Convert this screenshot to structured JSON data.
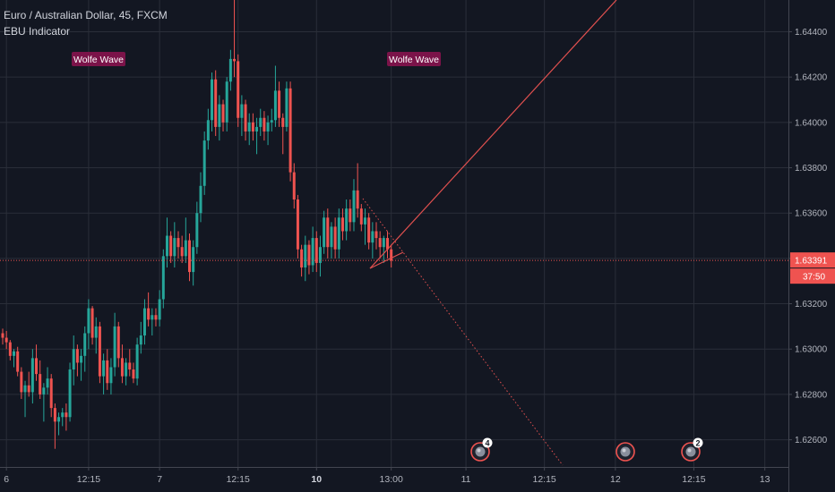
{
  "legend": {
    "symbol_line": "Euro / Australian Dollar, 45, FXCM",
    "indicator": "EBU Indicator"
  },
  "colors": {
    "background": "#131722",
    "grid": "#2a2e39",
    "up": "#26a69a",
    "down": "#ef5350",
    "wolfe_line": "#e0504f",
    "wolfe_label_bg": "#7b1349",
    "price_badge": "#ef5350"
  },
  "chart_data": {
    "type": "candlestick",
    "title": "Euro / Australian Dollar, 45, FXCM",
    "ylim": [
      1.6248,
      1.6454
    ],
    "y_ticks": [
      "1.62600",
      "1.62800",
      "1.63000",
      "1.63200",
      "1.63400",
      "1.63600",
      "1.63800",
      "1.64000",
      "1.64200",
      "1.64400"
    ],
    "x_ticks": [
      {
        "label": "6",
        "bar": 1,
        "bold": false
      },
      {
        "label": "12:15",
        "bar": 23,
        "bold": false
      },
      {
        "label": "7",
        "bar": 42,
        "bold": false
      },
      {
        "label": "12:15",
        "bar": 63,
        "bold": false
      },
      {
        "label": "10",
        "bar": 84,
        "bold": true
      },
      {
        "label": "13:00",
        "bar": 104,
        "bold": false
      },
      {
        "label": "11",
        "bar": 124,
        "bold": false
      },
      {
        "label": "12:15",
        "bar": 145,
        "bold": false
      },
      {
        "label": "12",
        "bar": 164,
        "bold": false
      },
      {
        "label": "12:15",
        "bar": 185,
        "bold": false
      },
      {
        "label": "13",
        "bar": 204,
        "bold": false
      }
    ],
    "current_price": "1.63391",
    "countdown": "37:50",
    "grid": true,
    "bar_spacing_note": "one candle per bar index",
    "candles": [
      [
        1.6307,
        1.6309,
        1.6302,
        1.6305
      ],
      [
        1.6305,
        1.6308,
        1.63,
        1.6303
      ],
      [
        1.6303,
        1.6304,
        1.6295,
        1.6297
      ],
      [
        1.6297,
        1.63,
        1.6292,
        1.6299
      ],
      [
        1.6299,
        1.6301,
        1.6288,
        1.629
      ],
      [
        1.629,
        1.6292,
        1.6278,
        1.6281
      ],
      [
        1.6281,
        1.6286,
        1.627,
        1.6284
      ],
      [
        1.6284,
        1.629,
        1.6279,
        1.6281
      ],
      [
        1.6281,
        1.63,
        1.6276,
        1.6296
      ],
      [
        1.6296,
        1.6302,
        1.6286,
        1.6289
      ],
      [
        1.6289,
        1.6295,
        1.6278,
        1.628
      ],
      [
        1.628,
        1.6285,
        1.6268,
        1.6283
      ],
      [
        1.6283,
        1.6292,
        1.628,
        1.6287
      ],
      [
        1.6287,
        1.6289,
        1.627,
        1.6274
      ],
      [
        1.6274,
        1.6276,
        1.6256,
        1.6268
      ],
      [
        1.6268,
        1.6272,
        1.6262,
        1.627
      ],
      [
        1.627,
        1.6274,
        1.6266,
        1.6272
      ],
      [
        1.6272,
        1.6276,
        1.6264,
        1.627
      ],
      [
        1.627,
        1.6294,
        1.6268,
        1.6291
      ],
      [
        1.6291,
        1.6306,
        1.6284,
        1.63
      ],
      [
        1.63,
        1.6302,
        1.6288,
        1.6294
      ],
      [
        1.6294,
        1.63,
        1.6286,
        1.6297
      ],
      [
        1.6297,
        1.631,
        1.629,
        1.6307
      ],
      [
        1.6307,
        1.6322,
        1.63,
        1.6318
      ],
      [
        1.6318,
        1.6319,
        1.6302,
        1.6305
      ],
      [
        1.6305,
        1.6314,
        1.6298,
        1.631
      ],
      [
        1.631,
        1.6312,
        1.6285,
        1.6288
      ],
      [
        1.6288,
        1.6298,
        1.628,
        1.6295
      ],
      [
        1.6295,
        1.63,
        1.6282,
        1.6285
      ],
      [
        1.6285,
        1.6296,
        1.628,
        1.6292
      ],
      [
        1.6292,
        1.6316,
        1.6288,
        1.631
      ],
      [
        1.631,
        1.6312,
        1.6292,
        1.6296
      ],
      [
        1.6296,
        1.6302,
        1.6285,
        1.6288
      ],
      [
        1.6288,
        1.6296,
        1.6284,
        1.6294
      ],
      [
        1.6294,
        1.63,
        1.6288,
        1.6291
      ],
      [
        1.6291,
        1.6294,
        1.6285,
        1.6287
      ],
      [
        1.6287,
        1.6305,
        1.6284,
        1.6302
      ],
      [
        1.6302,
        1.6312,
        1.6298,
        1.6306
      ],
      [
        1.6306,
        1.6322,
        1.6302,
        1.6318
      ],
      [
        1.6318,
        1.6325,
        1.631,
        1.6313
      ],
      [
        1.6313,
        1.6318,
        1.6306,
        1.6315
      ],
      [
        1.6315,
        1.6318,
        1.631,
        1.6313
      ],
      [
        1.6313,
        1.6326,
        1.631,
        1.6322
      ],
      [
        1.6322,
        1.6344,
        1.6318,
        1.6341
      ],
      [
        1.6341,
        1.6358,
        1.6336,
        1.635
      ],
      [
        1.635,
        1.6352,
        1.6338,
        1.6341
      ],
      [
        1.6341,
        1.6356,
        1.6336,
        1.6349
      ],
      [
        1.6349,
        1.6352,
        1.634,
        1.6345
      ],
      [
        1.6345,
        1.635,
        1.6338,
        1.6341
      ],
      [
        1.6341,
        1.6358,
        1.6338,
        1.6348
      ],
      [
        1.6348,
        1.6351,
        1.633,
        1.6334
      ],
      [
        1.6334,
        1.6348,
        1.6328,
        1.6345
      ],
      [
        1.6345,
        1.6365,
        1.6342,
        1.636
      ],
      [
        1.636,
        1.6378,
        1.6356,
        1.6372
      ],
      [
        1.6372,
        1.6396,
        1.6368,
        1.6392
      ],
      [
        1.6392,
        1.6406,
        1.6388,
        1.6401
      ],
      [
        1.6401,
        1.6422,
        1.6396,
        1.6419
      ],
      [
        1.6419,
        1.6423,
        1.6394,
        1.6398
      ],
      [
        1.6398,
        1.6412,
        1.6392,
        1.6408
      ],
      [
        1.6408,
        1.641,
        1.6396,
        1.64
      ],
      [
        1.64,
        1.642,
        1.6396,
        1.6418
      ],
      [
        1.6418,
        1.6432,
        1.6414,
        1.6428
      ],
      [
        1.6428,
        1.6454,
        1.642,
        1.6427
      ],
      [
        1.6427,
        1.643,
        1.6398,
        1.6402
      ],
      [
        1.6402,
        1.6412,
        1.6394,
        1.6408
      ],
      [
        1.6408,
        1.641,
        1.6392,
        1.6396
      ],
      [
        1.6396,
        1.6404,
        1.639,
        1.64
      ],
      [
        1.64,
        1.6404,
        1.6392,
        1.6396
      ],
      [
        1.6396,
        1.6402,
        1.6386,
        1.6398
      ],
      [
        1.6398,
        1.6406,
        1.6394,
        1.6402
      ],
      [
        1.6402,
        1.6405,
        1.6392,
        1.6396
      ],
      [
        1.6396,
        1.6403,
        1.639,
        1.64
      ],
      [
        1.64,
        1.6406,
        1.6396,
        1.6401
      ],
      [
        1.6401,
        1.6425,
        1.6398,
        1.6414
      ],
      [
        1.6414,
        1.6418,
        1.6398,
        1.6402
      ],
      [
        1.6402,
        1.6404,
        1.6386,
        1.6398
      ],
      [
        1.6398,
        1.6418,
        1.6396,
        1.6415
      ],
      [
        1.6415,
        1.6418,
        1.6374,
        1.6378
      ],
      [
        1.6378,
        1.6382,
        1.6362,
        1.6366
      ],
      [
        1.6366,
        1.6368,
        1.634,
        1.6344
      ],
      [
        1.6344,
        1.6346,
        1.6332,
        1.6336
      ],
      [
        1.6336,
        1.635,
        1.633,
        1.6346
      ],
      [
        1.6346,
        1.6348,
        1.6333,
        1.6337
      ],
      [
        1.6337,
        1.6354,
        1.6334,
        1.6349
      ],
      [
        1.6349,
        1.6352,
        1.6334,
        1.6338
      ],
      [
        1.6338,
        1.635,
        1.6332,
        1.6345
      ],
      [
        1.6345,
        1.6361,
        1.6342,
        1.6358
      ],
      [
        1.6358,
        1.6362,
        1.634,
        1.6345
      ],
      [
        1.6345,
        1.6356,
        1.634,
        1.6354
      ],
      [
        1.6354,
        1.6358,
        1.634,
        1.6344
      ],
      [
        1.6344,
        1.6362,
        1.634,
        1.6358
      ],
      [
        1.6358,
        1.6362,
        1.6348,
        1.6352
      ],
      [
        1.6352,
        1.6366,
        1.6348,
        1.6362
      ],
      [
        1.6362,
        1.6366,
        1.6352,
        1.6356
      ],
      [
        1.6356,
        1.6375,
        1.6352,
        1.637
      ],
      [
        1.637,
        1.6382,
        1.6358,
        1.6362
      ],
      [
        1.6362,
        1.6364,
        1.6352,
        1.6355
      ],
      [
        1.6355,
        1.6362,
        1.6346,
        1.6358
      ],
      [
        1.6358,
        1.636,
        1.6344,
        1.6347
      ],
      [
        1.6347,
        1.6356,
        1.634,
        1.6352
      ],
      [
        1.6352,
        1.6356,
        1.6344,
        1.6349
      ],
      [
        1.6349,
        1.6352,
        1.634,
        1.6345
      ],
      [
        1.6345,
        1.635,
        1.6338,
        1.6349
      ],
      [
        1.6349,
        1.6352,
        1.634,
        1.6344
      ],
      [
        1.6344,
        1.6346,
        1.6336,
        1.6339
      ]
    ]
  },
  "annotations": {
    "wolfe_labels": [
      "Wolfe Wave",
      "Wolfe Wave"
    ],
    "event_badges": [
      "4",
      "",
      "2"
    ]
  }
}
